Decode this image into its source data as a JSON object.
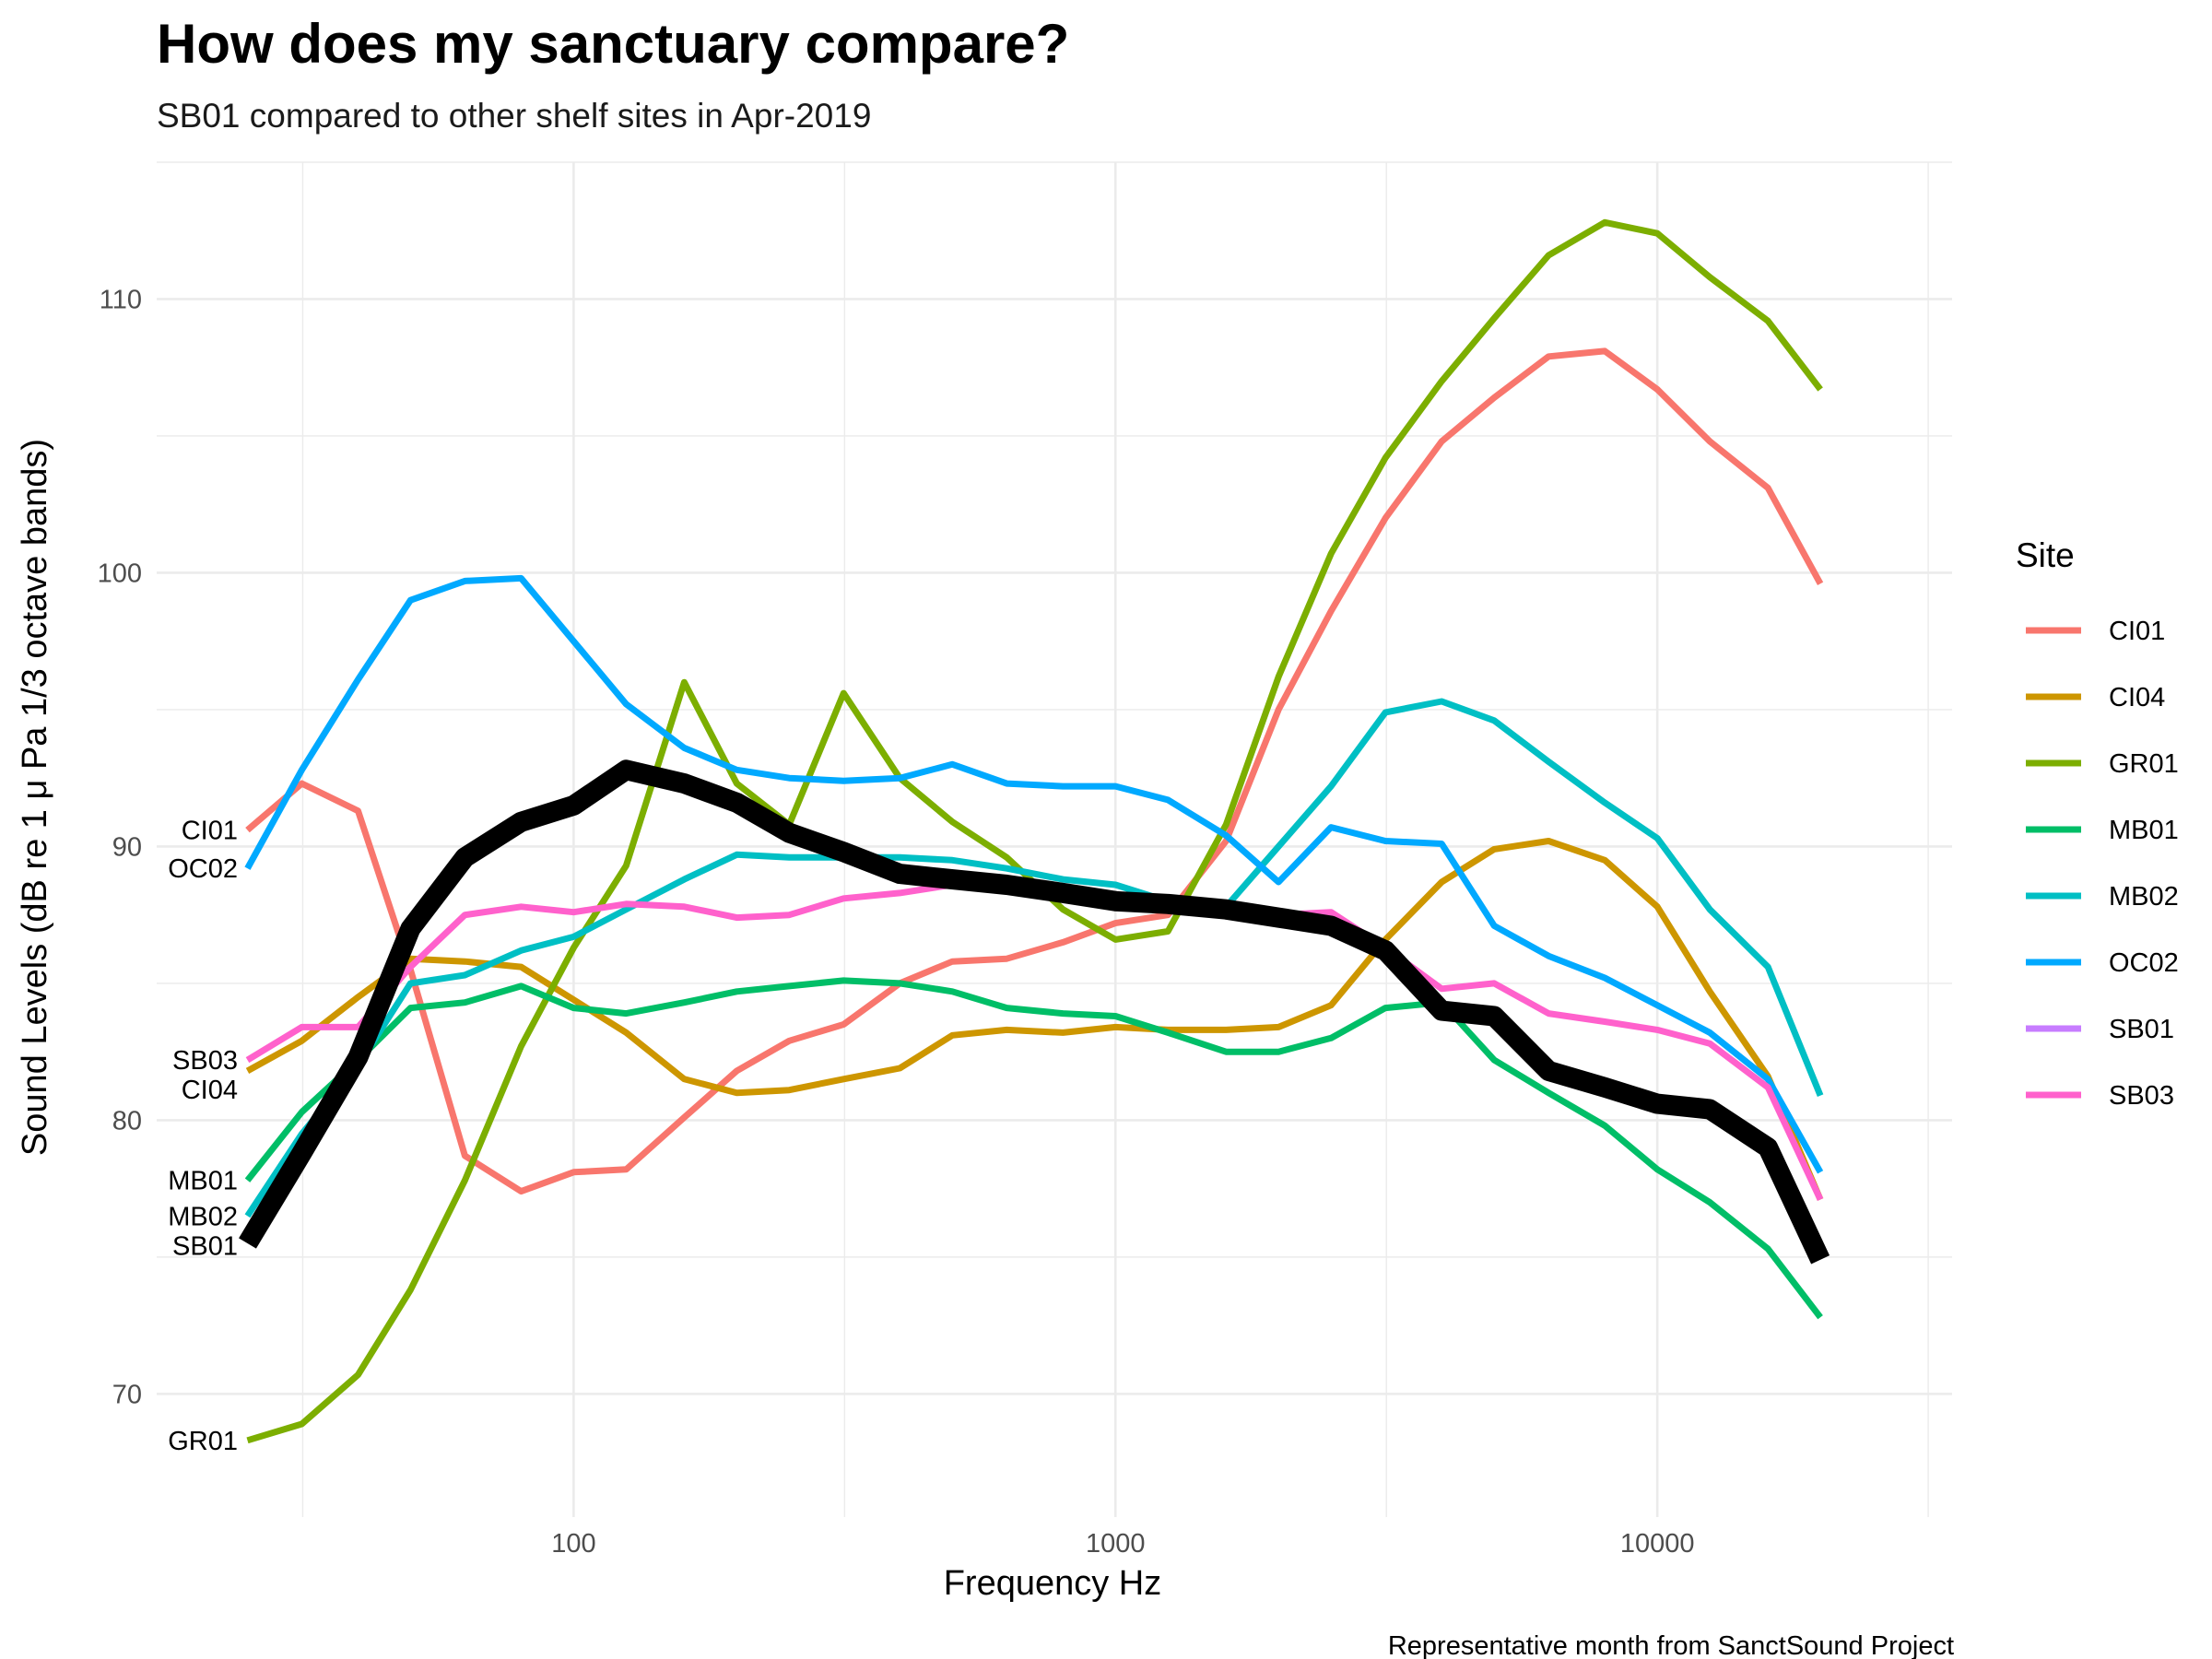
{
  "chart_data": {
    "type": "line",
    "title": "How does my sanctuary compare?",
    "subtitle": "SB01 compared to other shelf sites in Apr-2019",
    "xlabel": "Frequency Hz",
    "ylabel": "Sound Levels (dB re 1 μ Pa 1/3 octave bands)",
    "caption": "Representative month from SanctSound Project",
    "x_scale": "log10",
    "xlim": [
      17,
      35000
    ],
    "ylim": [
      65.5,
      115
    ],
    "x_ticks": [
      100,
      1000,
      10000
    ],
    "x_tick_labels": [
      "100",
      "1000",
      "10000"
    ],
    "y_ticks": [
      70,
      80,
      90,
      100,
      110
    ],
    "y_tick_labels": [
      "70",
      "80",
      "90",
      "100",
      "110"
    ],
    "grid": true,
    "legend": {
      "title": "Site",
      "position": "right"
    },
    "highlight_series": "SB01",
    "x": [
      25,
      31.5,
      40,
      50,
      63,
      80,
      100,
      125,
      160,
      200,
      250,
      315,
      400,
      500,
      630,
      800,
      1000,
      1250,
      1600,
      2000,
      2500,
      3150,
      4000,
      5000,
      6300,
      8000,
      10000,
      12500,
      16000,
      20000
    ],
    "series": [
      {
        "name": "CI01",
        "color": "#F8766D",
        "values": [
          90.6,
          92.3,
          91.3,
          85.5,
          78.7,
          77.4,
          78.1,
          78.2,
          80.1,
          81.8,
          82.9,
          83.5,
          85.0,
          85.8,
          85.9,
          86.5,
          87.2,
          87.5,
          90.2,
          95.0,
          98.6,
          102.0,
          104.8,
          106.4,
          107.9,
          108.1,
          106.7,
          104.8,
          103.1,
          99.6
        ]
      },
      {
        "name": "CI04",
        "color": "#CD9600",
        "values": [
          81.8,
          82.9,
          84.5,
          85.9,
          85.8,
          85.6,
          84.4,
          83.2,
          81.5,
          81.0,
          81.1,
          81.5,
          81.9,
          83.1,
          83.3,
          83.2,
          83.4,
          83.3,
          83.3,
          83.4,
          84.2,
          86.6,
          88.7,
          89.9,
          90.2,
          89.5,
          87.8,
          84.7,
          81.6,
          77.1
        ]
      },
      {
        "name": "GR01",
        "color": "#7CAE00",
        "values": [
          68.3,
          68.9,
          70.7,
          73.8,
          77.8,
          82.7,
          86.3,
          89.3,
          96.0,
          92.3,
          90.8,
          95.6,
          92.5,
          90.9,
          89.6,
          87.7,
          86.6,
          86.9,
          90.8,
          96.2,
          100.7,
          104.2,
          107.0,
          109.3,
          111.6,
          112.8,
          112.4,
          110.8,
          109.2,
          106.7
        ]
      },
      {
        "name": "MB01",
        "color": "#00BE67",
        "values": [
          77.8,
          80.3,
          82.2,
          84.1,
          84.3,
          84.9,
          84.1,
          83.9,
          84.3,
          84.7,
          84.9,
          85.1,
          85.0,
          84.7,
          84.1,
          83.9,
          83.8,
          83.2,
          82.5,
          82.5,
          83.0,
          84.1,
          84.3,
          82.2,
          81.0,
          79.8,
          78.2,
          77.0,
          75.3,
          72.8
        ]
      },
      {
        "name": "MB02",
        "color": "#00BFC4",
        "values": [
          76.5,
          79.5,
          82.0,
          85.0,
          85.3,
          86.2,
          86.7,
          87.7,
          88.8,
          89.7,
          89.6,
          89.6,
          89.6,
          89.5,
          89.2,
          88.8,
          88.6,
          88.0,
          87.8,
          90.0,
          92.2,
          94.9,
          95.3,
          94.6,
          93.1,
          91.6,
          90.3,
          87.7,
          85.6,
          80.9
        ]
      },
      {
        "name": "OC02",
        "color": "#00A9FF",
        "values": [
          89.2,
          92.8,
          96.1,
          99.0,
          99.7,
          99.8,
          97.5,
          95.2,
          93.6,
          92.8,
          92.5,
          92.4,
          92.5,
          93.0,
          92.3,
          92.2,
          92.2,
          91.7,
          90.4,
          88.7,
          90.7,
          90.2,
          90.1,
          87.1,
          86.0,
          85.2,
          84.2,
          83.2,
          81.5,
          78.1
        ]
      },
      {
        "name": "SB01",
        "color": "#000000",
        "legend_color": "#C77CFF",
        "values": [
          75.5,
          78.8,
          82.3,
          87.0,
          89.6,
          90.9,
          91.5,
          92.8,
          92.3,
          91.6,
          90.5,
          89.8,
          89.0,
          88.8,
          88.6,
          88.3,
          88.0,
          87.9,
          87.7,
          87.4,
          87.1,
          86.2,
          84.0,
          83.8,
          81.8,
          81.2,
          80.6,
          80.4,
          79.0,
          74.9
        ]
      },
      {
        "name": "SB03",
        "color": "#FF61CC",
        "values": [
          82.2,
          83.4,
          83.4,
          85.6,
          87.5,
          87.8,
          87.6,
          87.9,
          87.8,
          87.4,
          87.5,
          88.1,
          88.3,
          88.6,
          88.5,
          88.2,
          87.9,
          87.8,
          87.6,
          87.5,
          87.6,
          86.3,
          84.8,
          85.0,
          83.9,
          83.6,
          83.3,
          82.8,
          81.2,
          77.1
        ]
      }
    ],
    "end_labels": [
      {
        "text": "CI01",
        "series": "CI01"
      },
      {
        "text": "OC02",
        "series": "OC02"
      },
      {
        "text": "SB03",
        "series": "SB03"
      },
      {
        "text": "CI04",
        "series": "CI04"
      },
      {
        "text": "MB01",
        "series": "MB01"
      },
      {
        "text": "MB02",
        "series": "MB02"
      },
      {
        "text": "SB01",
        "series": "SB01"
      },
      {
        "text": "GR01",
        "series": "GR01"
      }
    ]
  }
}
